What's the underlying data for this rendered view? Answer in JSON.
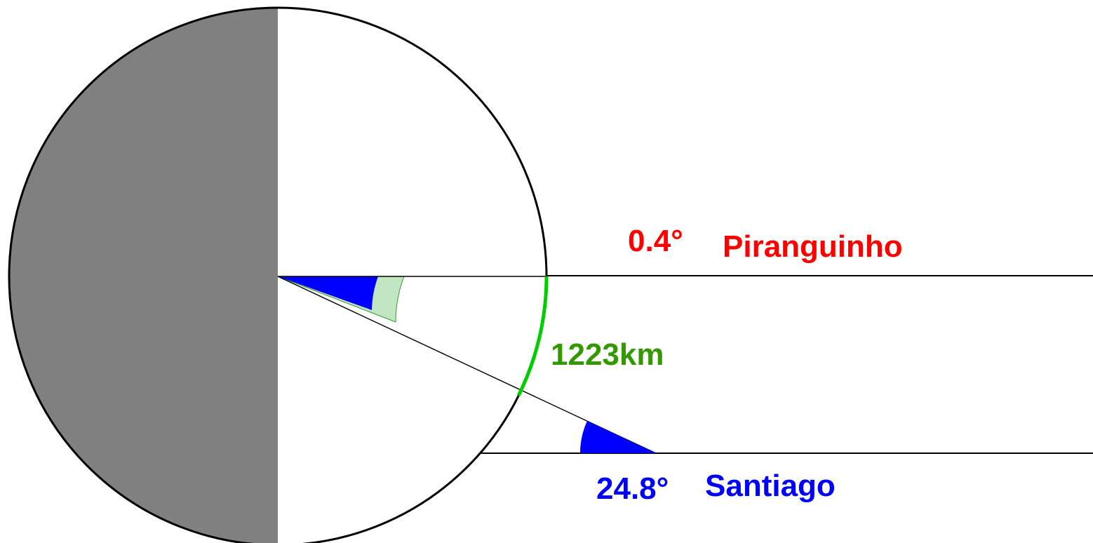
{
  "labels": {
    "piranguinho_angle": "0.4°",
    "piranguinho_name": "Piranguinho",
    "distance": "1223km",
    "santiago_angle": "24.8°",
    "santiago_name": "Santiago"
  },
  "colors": {
    "piranguinho": "#ff0000",
    "santiago": "#0000ff",
    "distance": "#339900",
    "arc_highlight": "#00cc00",
    "angle_fill_light": "#c2e6c2",
    "dark_half": "#808080",
    "outline": "#000000"
  }
}
